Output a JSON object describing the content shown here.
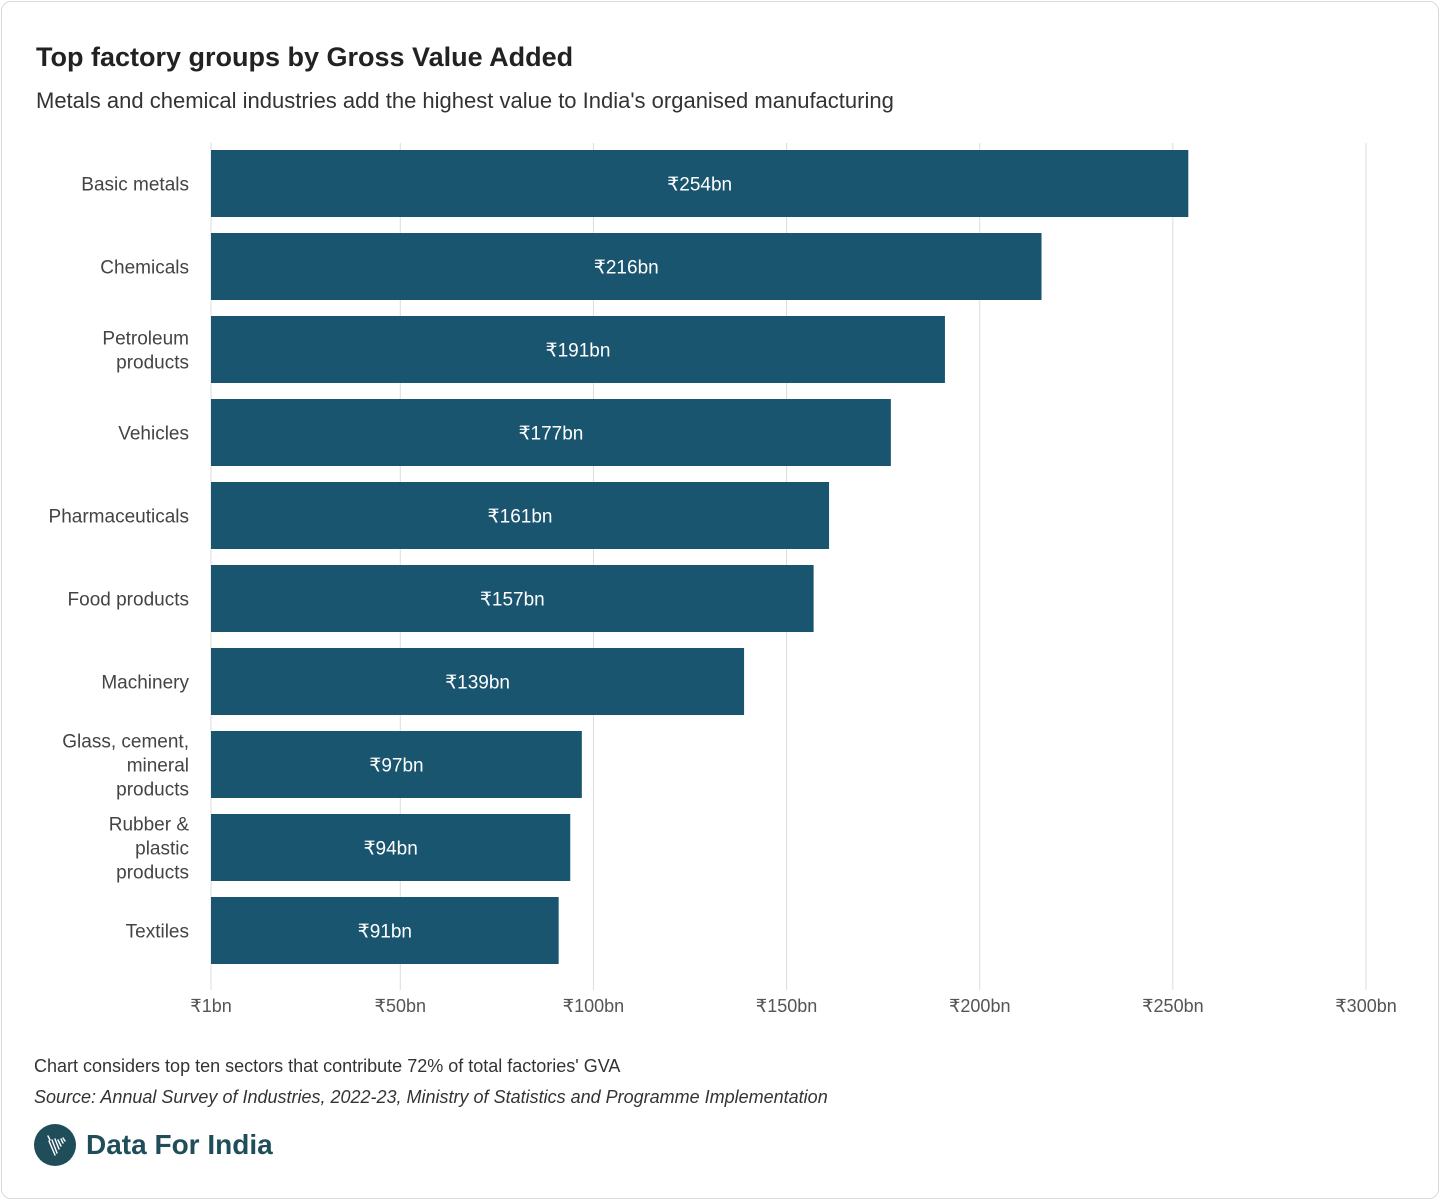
{
  "chart_data": {
    "type": "bar",
    "orientation": "horizontal",
    "title": "Top factory groups by Gross Value Added",
    "subtitle": "Metals and chemical industries add the highest value to India's organised manufacturing",
    "categories": [
      [
        "Basic metals"
      ],
      [
        "Chemicals"
      ],
      [
        "Petroleum",
        "products"
      ],
      [
        "Vehicles"
      ],
      [
        "Pharmaceuticals"
      ],
      [
        "Food products"
      ],
      [
        "Machinery"
      ],
      [
        "Glass, cement,",
        "mineral",
        "products"
      ],
      [
        "Rubber &",
        "plastic",
        "products"
      ],
      [
        "Textiles"
      ]
    ],
    "values": [
      254,
      216,
      191,
      177,
      161,
      157,
      139,
      97,
      94,
      91
    ],
    "data_labels": [
      "₹254bn",
      "₹216bn",
      "₹191bn",
      "₹177bn",
      "₹161bn",
      "₹157bn",
      "₹139bn",
      "₹97bn",
      "₹94bn",
      "₹91bn"
    ],
    "unit": "₹ billion",
    "xlim": [
      1,
      300
    ],
    "xticks": [
      1,
      50,
      100,
      150,
      200,
      250,
      300
    ],
    "xtick_labels": [
      "₹1bn",
      "₹50bn",
      "₹100bn",
      "₹150bn",
      "₹200bn",
      "₹250bn",
      "₹300bn"
    ],
    "grid": true,
    "legend": "none",
    "bar_color": "#1a5570"
  },
  "footer": {
    "note": "Chart considers top ten sectors that contribute 72% of total factories' GVA",
    "source": "Source: Annual Survey of Industries, 2022-23, Ministry of Statistics and Programme Implementation",
    "brand": "Data For India",
    "brand_color": "#1f4e5a"
  }
}
